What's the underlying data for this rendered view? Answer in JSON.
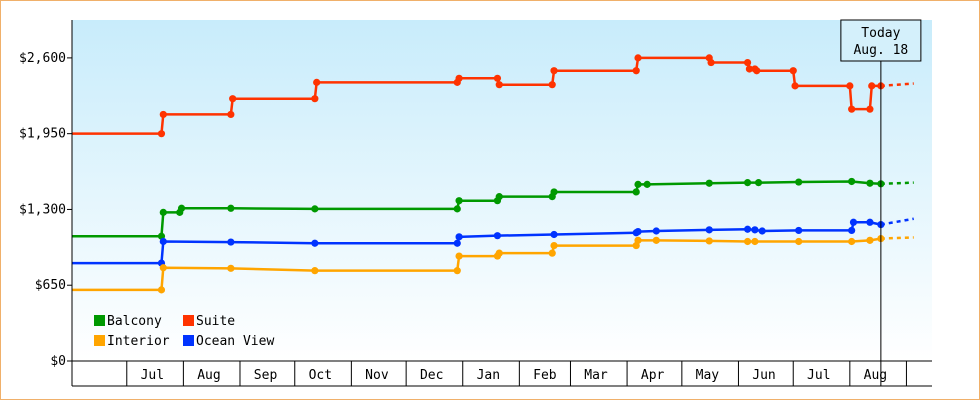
{
  "chart_data": {
    "type": "line",
    "title": "",
    "xlabel": "",
    "ylabel": "",
    "step": true,
    "ylim": [
      0,
      2925
    ],
    "y_ticks": [
      {
        "value": 0,
        "label": "$0"
      },
      {
        "value": 650,
        "label": "$650"
      },
      {
        "value": 1300,
        "label": "$1,300"
      },
      {
        "value": 1950,
        "label": "$1,950"
      },
      {
        "value": 2600,
        "label": "$2,600"
      }
    ],
    "x_range": [
      "2024-06-01",
      "2025-09-15"
    ],
    "x_ticks": [
      {
        "date": "2024-07-15",
        "label": "Jul"
      },
      {
        "date": "2024-08-15",
        "label": "Aug"
      },
      {
        "date": "2024-09-15",
        "label": "Sep"
      },
      {
        "date": "2024-10-15",
        "label": "Oct"
      },
      {
        "date": "2024-11-15",
        "label": "Nov"
      },
      {
        "date": "2024-12-15",
        "label": "Dec"
      },
      {
        "date": "2025-01-15",
        "label": "Jan"
      },
      {
        "date": "2025-02-15",
        "label": "Feb"
      },
      {
        "date": "2025-03-15",
        "label": "Mar"
      },
      {
        "date": "2025-04-15",
        "label": "Apr"
      },
      {
        "date": "2025-05-15",
        "label": "May"
      },
      {
        "date": "2025-06-15",
        "label": "Jun"
      },
      {
        "date": "2025-07-15",
        "label": "Jul"
      },
      {
        "date": "2025-08-15",
        "label": "Aug"
      }
    ],
    "x_boundaries": [
      "2024-07-01",
      "2024-08-01",
      "2024-09-01",
      "2024-10-01",
      "2024-11-01",
      "2024-12-01",
      "2025-01-01",
      "2025-02-01",
      "2025-03-01",
      "2025-04-01",
      "2025-05-01",
      "2025-06-01",
      "2025-07-01",
      "2025-08-01",
      "2025-09-01"
    ],
    "today": {
      "date": "2025-08-18",
      "label_line1": "Today",
      "label_line2": "Aug. 18"
    },
    "projection_end": "2025-09-05",
    "legend": {
      "placement": "bottom-left"
    },
    "series": [
      {
        "name": "Suite",
        "color": "#ff3300",
        "points": [
          [
            "2024-06-01",
            1950
          ],
          [
            "2024-07-20",
            1950
          ],
          [
            "2024-07-21",
            2115
          ],
          [
            "2024-08-27",
            2115
          ],
          [
            "2024-08-28",
            2250
          ],
          [
            "2024-10-12",
            2250
          ],
          [
            "2024-10-13",
            2390
          ],
          [
            "2024-12-29",
            2390
          ],
          [
            "2024-12-30",
            2425
          ],
          [
            "2025-01-20",
            2425
          ],
          [
            "2025-01-21",
            2370
          ],
          [
            "2025-02-19",
            2370
          ],
          [
            "2025-02-20",
            2490
          ],
          [
            "2025-04-06",
            2490
          ],
          [
            "2025-04-07",
            2600
          ],
          [
            "2025-05-16",
            2600
          ],
          [
            "2025-05-17",
            2560
          ],
          [
            "2025-06-06",
            2560
          ],
          [
            "2025-06-07",
            2505
          ],
          [
            "2025-06-10",
            2505
          ],
          [
            "2025-06-11",
            2490
          ],
          [
            "2025-07-01",
            2490
          ],
          [
            "2025-07-02",
            2360
          ],
          [
            "2025-08-01",
            2360
          ],
          [
            "2025-08-02",
            2160
          ],
          [
            "2025-08-12",
            2160
          ],
          [
            "2025-08-13",
            2360
          ],
          [
            "2025-08-18",
            2360
          ]
        ],
        "projection": [
          [
            "2025-08-18",
            2360
          ],
          [
            "2025-09-05",
            2380
          ]
        ]
      },
      {
        "name": "Balcony",
        "color": "#009900",
        "points": [
          [
            "2024-06-01",
            1070
          ],
          [
            "2024-07-20",
            1070
          ],
          [
            "2024-07-21",
            1275
          ],
          [
            "2024-07-30",
            1275
          ],
          [
            "2024-07-31",
            1310
          ],
          [
            "2024-08-27",
            1310
          ],
          [
            "2024-10-12",
            1305
          ],
          [
            "2024-12-29",
            1305
          ],
          [
            "2024-12-30",
            1375
          ],
          [
            "2025-01-20",
            1375
          ],
          [
            "2025-01-21",
            1410
          ],
          [
            "2025-02-19",
            1410
          ],
          [
            "2025-02-20",
            1450
          ],
          [
            "2025-04-06",
            1450
          ],
          [
            "2025-04-07",
            1515
          ],
          [
            "2025-04-12",
            1515
          ],
          [
            "2025-05-16",
            1525
          ],
          [
            "2025-06-06",
            1530
          ],
          [
            "2025-06-12",
            1530
          ],
          [
            "2025-07-04",
            1535
          ],
          [
            "2025-08-02",
            1540
          ],
          [
            "2025-08-12",
            1525
          ],
          [
            "2025-08-18",
            1520
          ]
        ],
        "projection": [
          [
            "2025-08-18",
            1520
          ],
          [
            "2025-09-05",
            1530
          ]
        ]
      },
      {
        "name": "Ocean View",
        "color": "#0033ff",
        "points": [
          [
            "2024-06-01",
            840
          ],
          [
            "2024-07-20",
            840
          ],
          [
            "2024-07-21",
            1025
          ],
          [
            "2024-08-27",
            1020
          ],
          [
            "2024-10-12",
            1010
          ],
          [
            "2024-12-29",
            1010
          ],
          [
            "2024-12-30",
            1065
          ],
          [
            "2025-01-20",
            1075
          ],
          [
            "2025-02-20",
            1085
          ],
          [
            "2025-04-06",
            1100
          ],
          [
            "2025-04-07",
            1110
          ],
          [
            "2025-04-17",
            1115
          ],
          [
            "2025-05-16",
            1125
          ],
          [
            "2025-06-06",
            1130
          ],
          [
            "2025-06-10",
            1125
          ],
          [
            "2025-06-14",
            1115
          ],
          [
            "2025-07-04",
            1120
          ],
          [
            "2025-08-02",
            1120
          ],
          [
            "2025-08-03",
            1190
          ],
          [
            "2025-08-12",
            1190
          ],
          [
            "2025-08-18",
            1170
          ]
        ],
        "projection": [
          [
            "2025-08-18",
            1170
          ],
          [
            "2025-09-05",
            1220
          ]
        ]
      },
      {
        "name": "Interior",
        "color": "#ffa500",
        "points": [
          [
            "2024-06-01",
            610
          ],
          [
            "2024-07-20",
            610
          ],
          [
            "2024-07-21",
            800
          ],
          [
            "2024-08-27",
            795
          ],
          [
            "2024-10-12",
            775
          ],
          [
            "2024-12-29",
            775
          ],
          [
            "2024-12-30",
            900
          ],
          [
            "2025-01-20",
            900
          ],
          [
            "2025-01-21",
            925
          ],
          [
            "2025-02-19",
            925
          ],
          [
            "2025-02-20",
            990
          ],
          [
            "2025-04-06",
            990
          ],
          [
            "2025-04-07",
            1035
          ],
          [
            "2025-04-17",
            1035
          ],
          [
            "2025-05-16",
            1030
          ],
          [
            "2025-06-06",
            1025
          ],
          [
            "2025-06-10",
            1025
          ],
          [
            "2025-07-04",
            1025
          ],
          [
            "2025-08-02",
            1025
          ],
          [
            "2025-08-12",
            1035
          ],
          [
            "2025-08-18",
            1050
          ]
        ],
        "projection": [
          [
            "2025-08-18",
            1050
          ],
          [
            "2025-09-05",
            1060
          ]
        ]
      }
    ],
    "legend_items": [
      {
        "name": "Balcony",
        "color": "#009900"
      },
      {
        "name": "Suite",
        "color": "#ff3300"
      },
      {
        "name": "Interior",
        "color": "#ffa500"
      },
      {
        "name": "Ocean View",
        "color": "#0033ff"
      }
    ],
    "background": {
      "top": "#c8ecfb",
      "bottom": "#ffffff"
    },
    "frame_color": "#f0b06a"
  }
}
